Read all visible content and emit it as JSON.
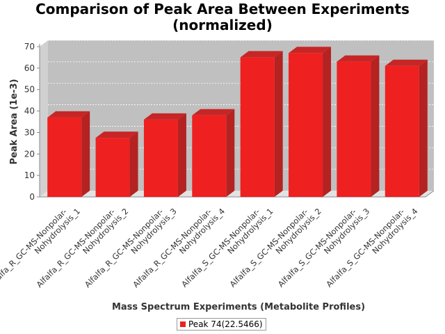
{
  "chart_data": {
    "type": "bar",
    "title_line1": "Comparison of Peak Area Between Experiments",
    "title_line2": "(normalized)",
    "xlabel": "Mass Spectrum Experiments (Metabolite Profiles)",
    "ylabel": "Peak Area (1e-3)",
    "ylim": [
      0,
      70
    ],
    "yticks": [
      0,
      10,
      20,
      30,
      40,
      50,
      60,
      70
    ],
    "grid": true,
    "legend_position": "bottom",
    "categories": [
      [
        "Alfalfa_R_GC-MS-Nonpolar-",
        "Nohydrolysis_1"
      ],
      [
        "Alfalfa_R_GC-MS-Nonpolar-",
        "Nohydrolysis_2"
      ],
      [
        "Alfalfa_R_GC-MS-Nonpolar-",
        "Nohydrolysis_3"
      ],
      [
        "Alfalfa_R_GC-MS-Nonpolar-",
        "Nohydrolysis_4"
      ],
      [
        "Alfalfa_S_GC-MS-Nonpolar-",
        "Nohydrolysis_1"
      ],
      [
        "Alfalfa_S_GC-MS-Nonpolar-",
        "Nohydrolysis_2"
      ],
      [
        "Alfalfa_S_GC-MS-Nonpolar-",
        "Nohydrolysis_3"
      ],
      [
        "Alfalfa_S_GC-MS-Nonpolar-",
        "Nohydrolysis_4"
      ]
    ],
    "series": [
      {
        "name": "Peak 74(22.5466)",
        "color": "#ee2020",
        "values": [
          37,
          27.5,
          36,
          38,
          65,
          67,
          63,
          61
        ]
      }
    ]
  }
}
